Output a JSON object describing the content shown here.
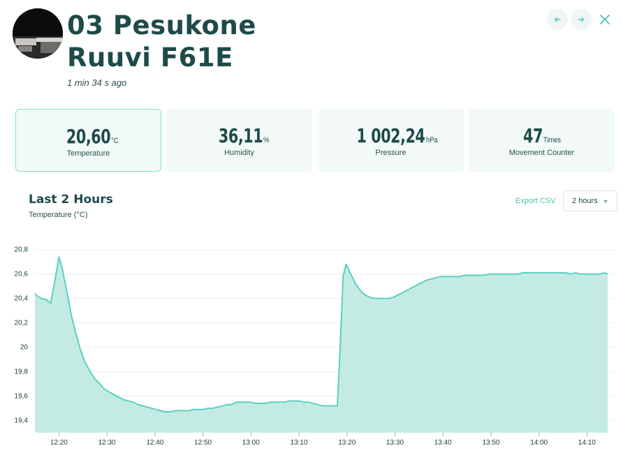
{
  "sensor": {
    "name_line1": "03 Pesukone",
    "name_line2": "Ruuvi F61E",
    "updated": "1 min 34 s ago"
  },
  "nav": {
    "prev_icon": "arrow-left-icon",
    "next_icon": "arrow-right-icon",
    "close_icon": "close-icon"
  },
  "measurements": [
    {
      "value": "20,60",
      "unit": "°C",
      "label": "Temperature",
      "selected": true
    },
    {
      "value": "36,11",
      "unit": "%",
      "label": "Humidity",
      "selected": false
    },
    {
      "value": "1 002,24",
      "unit": "hPa",
      "label": "Pressure",
      "selected": false
    },
    {
      "value": "47",
      "unit": "Times",
      "label": "Movement Counter",
      "selected": false
    }
  ],
  "chart_section": {
    "title": "Last 2 Hours",
    "subtitle": "Temperature (°C)",
    "export_label": "Export CSV",
    "range_selected": "2 hours"
  },
  "colors": {
    "accent": "#4cbfae",
    "line": "#5ccfbe",
    "fill": "#c3ebe4",
    "text_dark": "#1e4a4a"
  },
  "chart_data": {
    "type": "area",
    "title": "Last 2 Hours",
    "ylabel": "Temperature (°C)",
    "ylim": [
      19.3,
      20.85
    ],
    "y_ticks": [
      "20,8",
      "20,6",
      "20,4",
      "20,2",
      "20",
      "19,8",
      "19,6",
      "19,4"
    ],
    "y_tick_values": [
      20.8,
      20.6,
      20.4,
      20.2,
      20.0,
      19.8,
      19.6,
      19.4
    ],
    "x_ticks": [
      "12:20",
      "12:30",
      "12:40",
      "12:50",
      "13:00",
      "13:10",
      "13:20",
      "13:30",
      "13:40",
      "13:50",
      "14:00",
      "14:10"
    ],
    "x_tick_minutes": [
      740,
      750,
      760,
      770,
      780,
      790,
      800,
      810,
      820,
      830,
      840,
      850
    ],
    "xlim_minutes": [
      735.0,
      854.3
    ],
    "grid": true,
    "series": [
      {
        "x": [
          735.0,
          735.5,
          736.3,
          737.4,
          738.3,
          739.4,
          740.0,
          740.6,
          741.6,
          742.6,
          743.5,
          744.4,
          745.4,
          746.5,
          747.5,
          748.5,
          749.4,
          750.6,
          751.5,
          752.5,
          753.5,
          754.5,
          755.5,
          756.5,
          757.5,
          758.3,
          759.3,
          760.2,
          761.2,
          762.2,
          763.2,
          764.2,
          765.2,
          766.1,
          767.1,
          768.1,
          769.1,
          770.1,
          771.1,
          772.1,
          773.1,
          774.1,
          775.0,
          776.0,
          777.0,
          778.0,
          779.0,
          780.0,
          781.0,
          782.0,
          783.0,
          784.0,
          785.0,
          786.0,
          787.0,
          788.0,
          789.0,
          790.0,
          791.0,
          792.0,
          793.0,
          794.0,
          795.0,
          796.0,
          797.0,
          798.0,
          798.5,
          799.2,
          799.8,
          800.8,
          801.8,
          802.7,
          803.7,
          804.7,
          805.7,
          806.7,
          807.7,
          808.7,
          809.7,
          810.7,
          811.7,
          812.7,
          813.6,
          814.6,
          815.6,
          816.6,
          817.6,
          818.6,
          819.6,
          820.6,
          821.6,
          822.6,
          823.6,
          824.6,
          825.6,
          826.6,
          827.6,
          828.6,
          829.6,
          830.6,
          831.6,
          832.6,
          833.6,
          834.6,
          835.6,
          836.6,
          837.6,
          838.6,
          839.6,
          840.6,
          841.6,
          842.6,
          843.6,
          844.6,
          845.6,
          846.6,
          847.6,
          848.6,
          849.6,
          850.6,
          851.6,
          852.6,
          853.6,
          854.3
        ],
        "y": [
          20.44,
          20.42,
          20.4,
          20.39,
          20.36,
          20.6,
          20.74,
          20.66,
          20.47,
          20.26,
          20.12,
          19.99,
          19.88,
          19.8,
          19.74,
          19.7,
          19.66,
          19.63,
          19.61,
          19.59,
          19.57,
          19.56,
          19.55,
          19.53,
          19.52,
          19.51,
          19.5,
          19.49,
          19.48,
          19.47,
          19.47,
          19.48,
          19.48,
          19.48,
          19.48,
          19.49,
          19.49,
          19.49,
          19.5,
          19.5,
          19.51,
          19.52,
          19.53,
          19.53,
          19.55,
          19.55,
          19.55,
          19.55,
          19.54,
          19.54,
          19.54,
          19.55,
          19.55,
          19.55,
          19.55,
          19.56,
          19.56,
          19.56,
          19.55,
          19.55,
          19.54,
          19.53,
          19.52,
          19.52,
          19.52,
          19.52,
          19.93,
          20.58,
          20.68,
          20.6,
          20.52,
          20.47,
          20.43,
          20.41,
          20.4,
          20.4,
          20.4,
          20.4,
          20.41,
          20.43,
          20.45,
          20.47,
          20.49,
          20.51,
          20.53,
          20.55,
          20.56,
          20.57,
          20.58,
          20.58,
          20.58,
          20.58,
          20.58,
          20.59,
          20.59,
          20.59,
          20.59,
          20.59,
          20.6,
          20.6,
          20.6,
          20.6,
          20.6,
          20.6,
          20.6,
          20.61,
          20.61,
          20.61,
          20.61,
          20.61,
          20.61,
          20.61,
          20.61,
          20.61,
          20.61,
          20.6,
          20.61,
          20.6,
          20.6,
          20.6,
          20.6,
          20.6,
          20.61,
          20.6
        ]
      }
    ]
  }
}
